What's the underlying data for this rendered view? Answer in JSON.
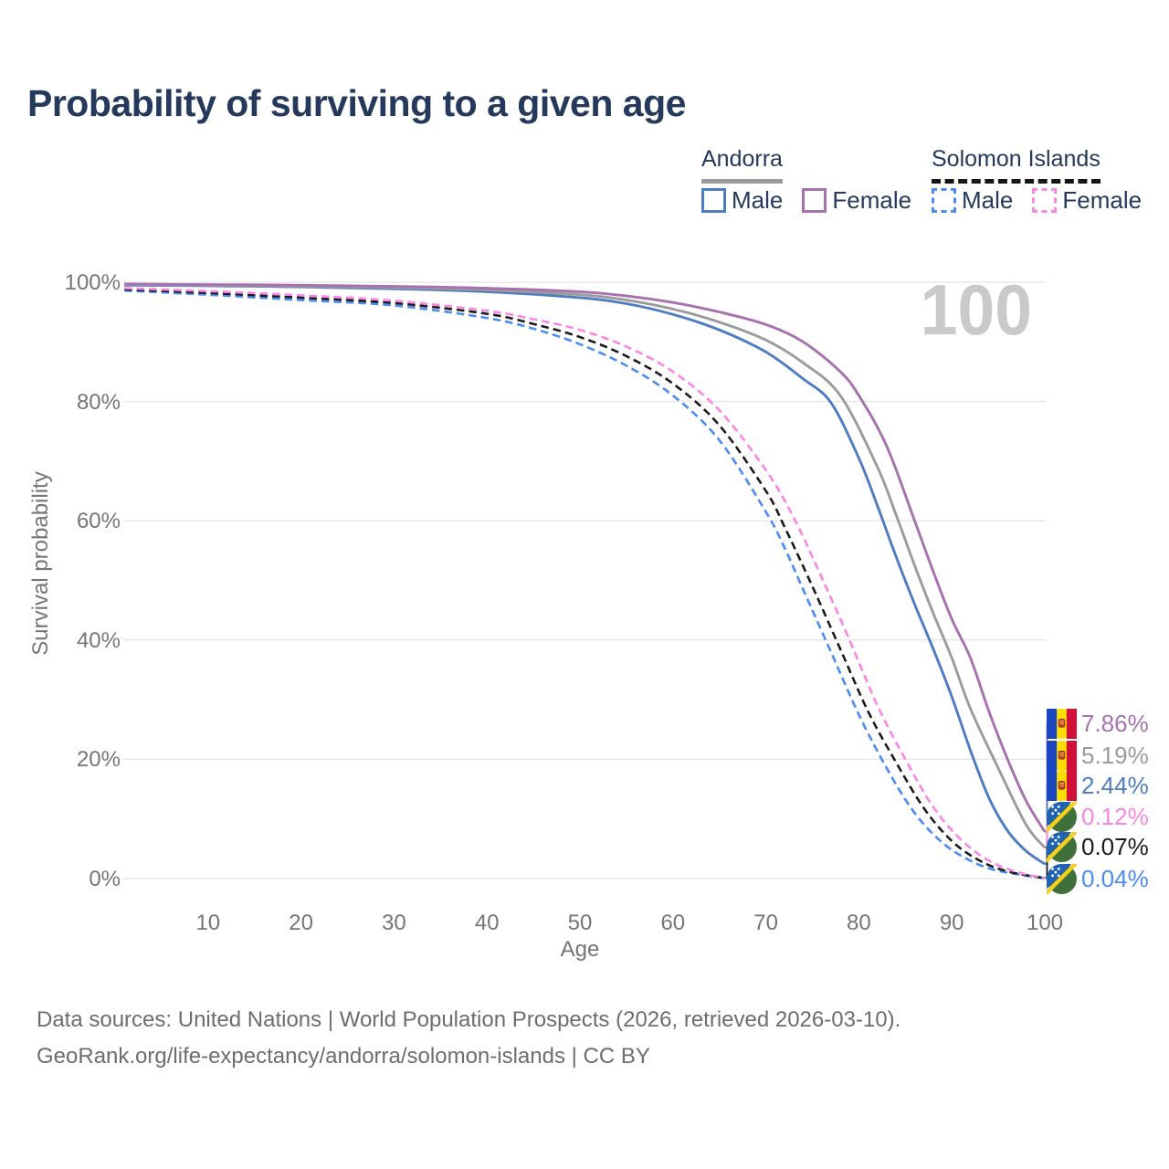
{
  "title": "Probability of surviving to a given age",
  "watermark_age": "100",
  "colors": {
    "title": "#24395b",
    "axis_text": "#757575",
    "grid": "#e8e8e8",
    "watermark": "#c9c9c9",
    "footer_text": "#6d6d6d",
    "andorra_male": "#4e7cc2",
    "andorra_female": "#a671ae",
    "andorra_both": "#9b9b9b",
    "solomon_male": "#4b8bf5",
    "solomon_female": "#fb86e4",
    "solomon_both": "#1b1b1b"
  },
  "legend": {
    "groups": [
      {
        "id": "andorra",
        "label": "Andorra",
        "line_style": "solid",
        "underline_color": "#9b9b9b",
        "items": [
          {
            "label": "Male",
            "color": "#4e7cc2"
          },
          {
            "label": "Female",
            "color": "#a671ae"
          }
        ]
      },
      {
        "id": "solomon-islands",
        "label": "Solomon Islands",
        "line_style": "dashed",
        "underline_color": "#161616",
        "items": [
          {
            "label": "Male",
            "color": "#4b8bf5"
          },
          {
            "label": "Female",
            "color": "#fb86e4"
          }
        ]
      }
    ]
  },
  "chart_data": {
    "type": "line",
    "title": "Probability of surviving to a given age",
    "xlabel": "Age",
    "ylabel": "Survival probability",
    "xlim": [
      1,
      100
    ],
    "ylim": [
      0,
      100
    ],
    "grid": "horizontal-only",
    "legend_position": "top-right",
    "xticks": [
      10,
      20,
      30,
      40,
      50,
      60,
      70,
      80,
      90,
      100
    ],
    "yticks": [
      {
        "v": 0,
        "label": "0%"
      },
      {
        "v": 20,
        "label": "20%"
      },
      {
        "v": 40,
        "label": "40%"
      },
      {
        "v": 60,
        "label": "60%"
      },
      {
        "v": 80,
        "label": "80%"
      },
      {
        "v": 100,
        "label": "100%"
      }
    ],
    "series": [
      {
        "name": "Solomon Islands Male",
        "country": "solomon-islands",
        "sex": "male",
        "color": "#4b8bf5",
        "dash": true,
        "points": [
          [
            1,
            98.6
          ],
          [
            10,
            97.9
          ],
          [
            20,
            97.0
          ],
          [
            30,
            96.1
          ],
          [
            40,
            94.0
          ],
          [
            45,
            92.2
          ],
          [
            50,
            89.6
          ],
          [
            55,
            86.0
          ],
          [
            60,
            81.0
          ],
          [
            65,
            73.5
          ],
          [
            70,
            61.5
          ],
          [
            72,
            55.5
          ],
          [
            74,
            48.5
          ],
          [
            77,
            38.0
          ],
          [
            80,
            27.5
          ],
          [
            83,
            18.5
          ],
          [
            86,
            11.0
          ],
          [
            89,
            6.0
          ],
          [
            92,
            3.0
          ],
          [
            95,
            1.3
          ],
          [
            100,
            0.04
          ]
        ]
      },
      {
        "name": "Solomon Islands Both sexes",
        "country": "solomon-islands",
        "sex": "both",
        "color": "#1b1b1b",
        "dash": true,
        "points": [
          [
            1,
            98.8
          ],
          [
            10,
            98.2
          ],
          [
            20,
            97.4
          ],
          [
            30,
            96.5
          ],
          [
            40,
            94.7
          ],
          [
            45,
            93.0
          ],
          [
            50,
            90.8
          ],
          [
            55,
            87.6
          ],
          [
            60,
            83.0
          ],
          [
            65,
            76.0
          ],
          [
            70,
            65.0
          ],
          [
            72,
            59.0
          ],
          [
            75,
            49.0
          ],
          [
            78,
            38.5
          ],
          [
            81,
            28.0
          ],
          [
            84,
            19.5
          ],
          [
            87,
            11.8
          ],
          [
            90,
            6.3
          ],
          [
            93,
            3.0
          ],
          [
            96,
            1.2
          ],
          [
            100,
            0.07
          ]
        ]
      },
      {
        "name": "Solomon Islands Female",
        "country": "solomon-islands",
        "sex": "female",
        "color": "#fb86e4",
        "dash": true,
        "points": [
          [
            1,
            99.0
          ],
          [
            10,
            98.5
          ],
          [
            20,
            97.8
          ],
          [
            30,
            96.9
          ],
          [
            40,
            95.2
          ],
          [
            45,
            93.8
          ],
          [
            50,
            92.0
          ],
          [
            55,
            89.2
          ],
          [
            60,
            85.0
          ],
          [
            65,
            78.5
          ],
          [
            70,
            68.5
          ],
          [
            73,
            60.5
          ],
          [
            76,
            50.5
          ],
          [
            79,
            40.0
          ],
          [
            82,
            29.0
          ],
          [
            85,
            20.0
          ],
          [
            88,
            12.0
          ],
          [
            91,
            6.5
          ],
          [
            94,
            3.0
          ],
          [
            97,
            1.1
          ],
          [
            100,
            0.12
          ]
        ]
      },
      {
        "name": "Andorra Male",
        "country": "andorra",
        "sex": "male",
        "color": "#4e7cc2",
        "dash": false,
        "points": [
          [
            1,
            99.5
          ],
          [
            10,
            99.4
          ],
          [
            20,
            99.2
          ],
          [
            30,
            98.9
          ],
          [
            40,
            98.4
          ],
          [
            50,
            97.4
          ],
          [
            55,
            96.4
          ],
          [
            60,
            94.6
          ],
          [
            65,
            92.0
          ],
          [
            70,
            88.3
          ],
          [
            74,
            83.8
          ],
          [
            77,
            79.8
          ],
          [
            80,
            70.5
          ],
          [
            82,
            62.5
          ],
          [
            84,
            54.0
          ],
          [
            86,
            46.0
          ],
          [
            88,
            38.5
          ],
          [
            90,
            30.5
          ],
          [
            92,
            21.5
          ],
          [
            94,
            13.5
          ],
          [
            96,
            8.0
          ],
          [
            98,
            4.6
          ],
          [
            100,
            2.44
          ]
        ]
      },
      {
        "name": "Andorra Both sexes",
        "country": "andorra",
        "sex": "both",
        "color": "#9b9b9b",
        "dash": false,
        "points": [
          [
            1,
            99.6
          ],
          [
            10,
            99.5
          ],
          [
            20,
            99.3
          ],
          [
            30,
            99.1
          ],
          [
            40,
            98.7
          ],
          [
            50,
            97.9
          ],
          [
            55,
            97.0
          ],
          [
            60,
            95.5
          ],
          [
            65,
            93.3
          ],
          [
            70,
            90.3
          ],
          [
            74,
            86.5
          ],
          [
            78,
            81.0
          ],
          [
            82,
            69.0
          ],
          [
            84,
            61.0
          ],
          [
            86,
            52.5
          ],
          [
            88,
            44.5
          ],
          [
            90,
            37.0
          ],
          [
            92,
            28.5
          ],
          [
            95,
            18.5
          ],
          [
            98,
            9.0
          ],
          [
            100,
            5.19
          ]
        ]
      },
      {
        "name": "Andorra Female",
        "country": "andorra",
        "sex": "female",
        "color": "#a671ae",
        "dash": false,
        "points": [
          [
            1,
            99.7
          ],
          [
            10,
            99.6
          ],
          [
            20,
            99.5
          ],
          [
            30,
            99.3
          ],
          [
            40,
            99.0
          ],
          [
            50,
            98.4
          ],
          [
            55,
            97.7
          ],
          [
            60,
            96.6
          ],
          [
            65,
            95.0
          ],
          [
            70,
            92.9
          ],
          [
            74,
            90.0
          ],
          [
            78,
            85.0
          ],
          [
            80,
            81.0
          ],
          [
            83,
            72.5
          ],
          [
            86,
            60.0
          ],
          [
            88,
            51.5
          ],
          [
            90,
            43.5
          ],
          [
            92,
            37.0
          ],
          [
            94,
            28.0
          ],
          [
            96,
            20.0
          ],
          [
            98,
            13.0
          ],
          [
            100,
            7.86
          ]
        ]
      }
    ],
    "end_labels": [
      {
        "country": "andorra",
        "value": "7.86%",
        "value_pct": 7.86,
        "color": "#a671ae"
      },
      {
        "country": "andorra",
        "value": "5.19%",
        "value_pct": 5.19,
        "color": "#9b9b9b"
      },
      {
        "country": "andorra",
        "value": "2.44%",
        "value_pct": 2.44,
        "color": "#4e7cc2"
      },
      {
        "country": "solomon-islands",
        "value": "0.12%",
        "value_pct": 0.12,
        "color": "#fb86e4"
      },
      {
        "country": "solomon-islands",
        "value": "0.07%",
        "value_pct": 0.07,
        "color": "#1b1b1b"
      },
      {
        "country": "solomon-islands",
        "value": "0.04%",
        "value_pct": 0.04,
        "color": "#4b8bf5"
      }
    ]
  },
  "footer": {
    "line1": "Data sources: United Nations | World Population Prospects (2026, retrieved 2026-03-10).",
    "line2": "GeoRank.org/life-expectancy/andorra/solomon-islands | CC BY"
  }
}
